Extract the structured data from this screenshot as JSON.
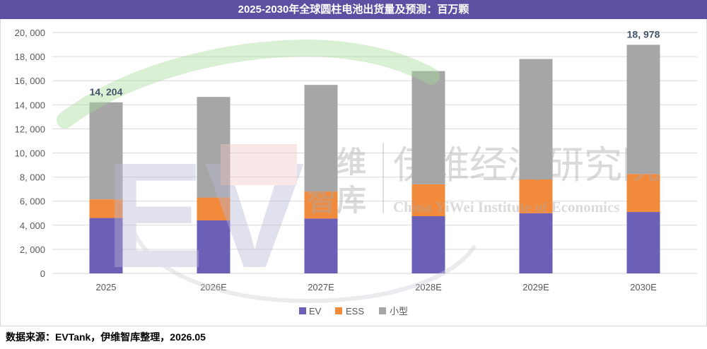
{
  "chart_data": {
    "type": "bar",
    "stacked": true,
    "title": "2025-2030年全球圆柱电池出货量及预测：百万颗",
    "xlabel": "",
    "ylabel": "",
    "categories": [
      "2025",
      "2026E",
      "2027E",
      "2028E",
      "2029E",
      "2030E"
    ],
    "series": [
      {
        "name": "EV",
        "color": "#6b5fb6",
        "values": [
          4600,
          4400,
          4550,
          4750,
          5000,
          5100
        ]
      },
      {
        "name": "ESS",
        "color": "#f28a3c",
        "values": [
          1550,
          1900,
          2250,
          2650,
          2800,
          3150
        ]
      },
      {
        "name": "小型",
        "color": "#a6a6a6",
        "values": [
          8054,
          8350,
          8850,
          9400,
          10000,
          10728
        ]
      }
    ],
    "ylim": [
      0,
      20000
    ],
    "yticks": [
      0,
      2000,
      4000,
      6000,
      8000,
      10000,
      12000,
      14000,
      16000,
      18000,
      20000
    ],
    "ytick_labels": [
      "0",
      "2, 000",
      "4, 000",
      "6, 000",
      "8, 000",
      "10, 000",
      "12, 000",
      "14, 000",
      "16, 000",
      "18, 000",
      "20, 000"
    ],
    "total_labels": [
      {
        "category": "2025",
        "value": 14204,
        "text": "14, 204"
      },
      {
        "category": "2030E",
        "value": 18978,
        "text": "18, 978"
      }
    ],
    "grid": true,
    "legend": "bottom"
  },
  "source": "数据来源：EVTank，伊维智库整理，2026.05",
  "colors": {
    "title_bar": "#5d50a3",
    "title_text": "#ffffff",
    "total_label": "#44546a",
    "axis_text": "#595959",
    "grid": "#d9d9d9"
  },
  "watermark": {
    "brand_letters": "EV",
    "logo_line1": "伊维",
    "logo_line2": "智库",
    "institute_cn": "伊维经济研究院",
    "institute_en": "China YiWei Institute of Economics"
  }
}
